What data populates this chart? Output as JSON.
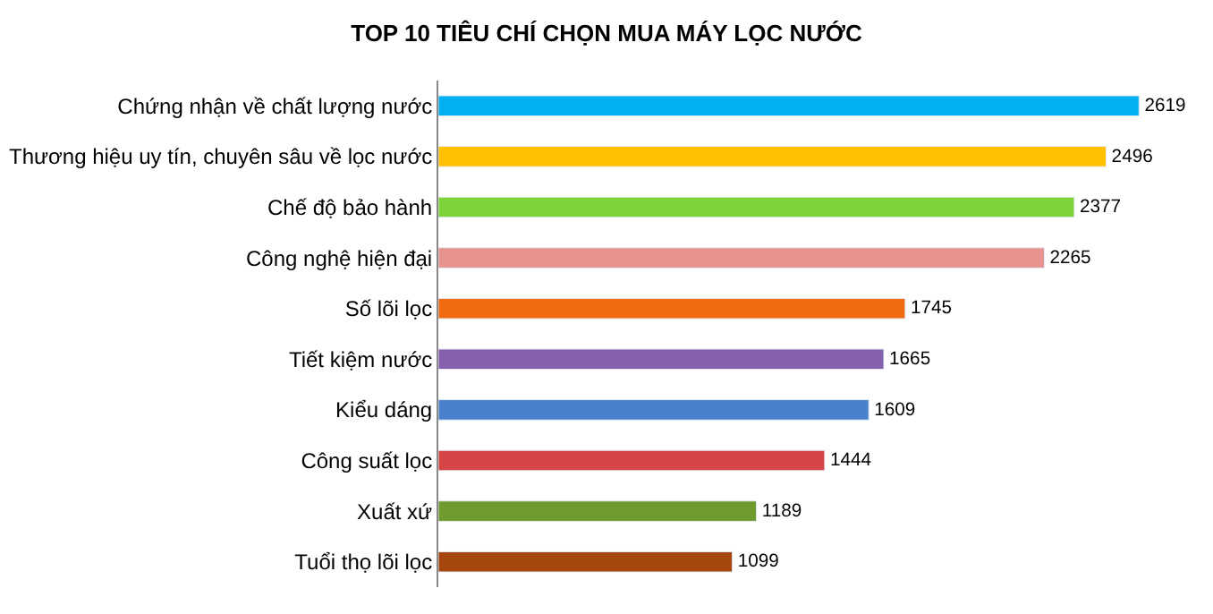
{
  "chart_data": {
    "type": "bar",
    "orientation": "horizontal",
    "title": "TOP 10 TIÊU CHÍ CHỌN MUA MÁY LỌC NƯỚC",
    "categories": [
      "Chứng nhận về chất lượng nước",
      "Thương hiệu uy tín, chuyên sâu về lọc nước",
      "Chế độ bảo hành",
      "Công nghệ hiện đại",
      "Số lõi lọc",
      "Tiết kiệm nước",
      "Kiểu dáng",
      "Công suất lọc",
      "Xuất xứ",
      "Tuổi thọ lõi lọc"
    ],
    "values": [
      2619,
      2496,
      2377,
      2265,
      1745,
      1665,
      1609,
      1444,
      1189,
      1099
    ],
    "colors": [
      "#00b0f0",
      "#ffc000",
      "#7ed23a",
      "#e6928f",
      "#f26a0f",
      "#8561ad",
      "#4a7fcc",
      "#d64545",
      "#6e9a2e",
      "#a5470e"
    ],
    "data_labels": true,
    "tick_labels": "y"
  }
}
